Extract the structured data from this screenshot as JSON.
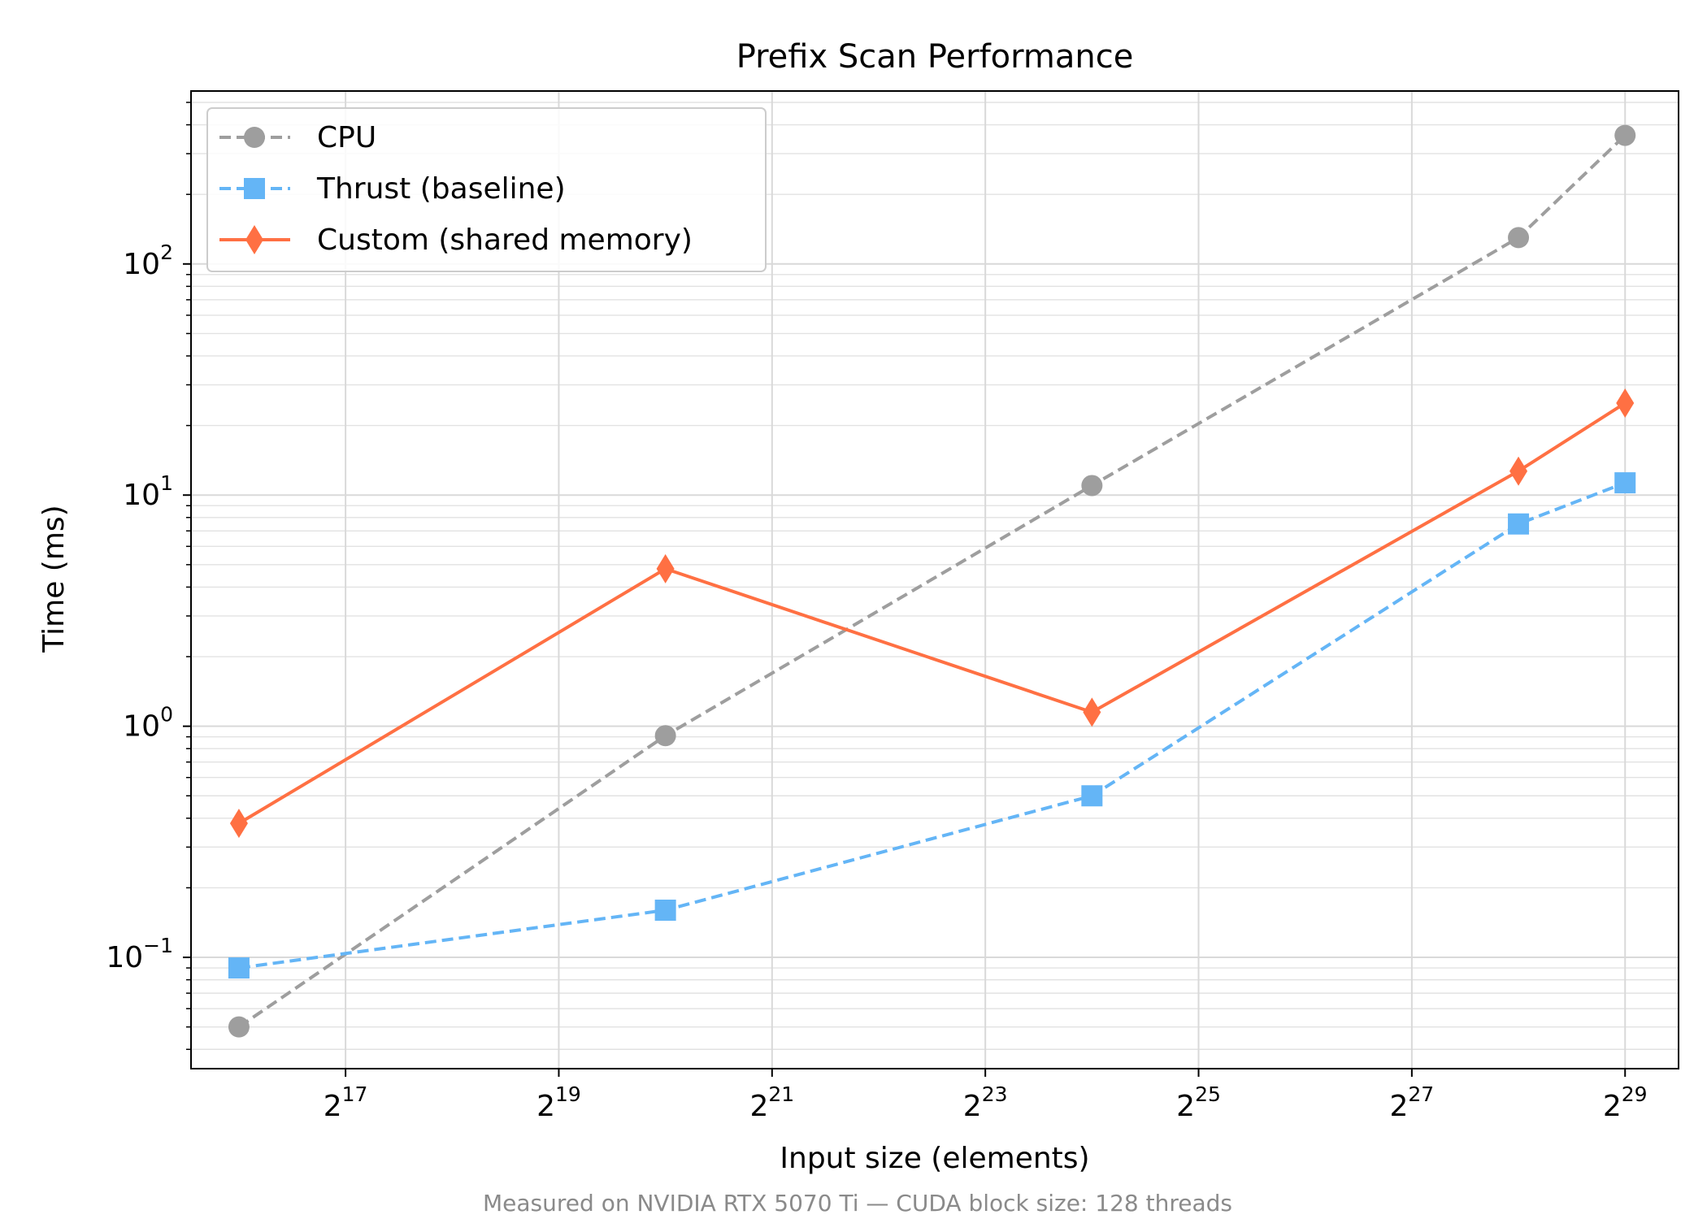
{
  "chart_data": {
    "type": "line",
    "title": "Prefix Scan Performance",
    "xlabel": "Input size (elements)",
    "ylabel": "Time (ms)",
    "caption": "Measured on NVIDIA RTX 5070 Ti — CUDA block size: 128 threads",
    "x_scale": "log2",
    "y_scale": "log10",
    "x": [
      65536,
      1048576,
      16777216,
      268435456,
      536870912
    ],
    "xlim": [
      48000,
      760000000
    ],
    "ylim": [
      0.033,
      560
    ],
    "x_ticks": [
      {
        "value": 131072,
        "base": "2",
        "exp": "17"
      },
      {
        "value": 524288,
        "base": "2",
        "exp": "19"
      },
      {
        "value": 2097152,
        "base": "2",
        "exp": "21"
      },
      {
        "value": 8388608,
        "base": "2",
        "exp": "23"
      },
      {
        "value": 33554432,
        "base": "2",
        "exp": "25"
      },
      {
        "value": 134217728,
        "base": "2",
        "exp": "27"
      },
      {
        "value": 536870912,
        "base": "2",
        "exp": "29"
      }
    ],
    "y_ticks": [
      {
        "value": 0.1,
        "base": "10",
        "exp": "−1"
      },
      {
        "value": 1,
        "base": "10",
        "exp": "0"
      },
      {
        "value": 10,
        "base": "10",
        "exp": "1"
      },
      {
        "value": 100,
        "base": "10",
        "exp": "2"
      }
    ],
    "grid": true,
    "legend_position": "top-left",
    "series": [
      {
        "name": "CPU",
        "values": [
          0.05,
          0.91,
          11,
          130,
          360
        ],
        "color": "#9e9e9e",
        "line_style": "dashed",
        "marker": "circle"
      },
      {
        "name": "Thrust (baseline)",
        "values": [
          0.09,
          0.16,
          0.5,
          7.5,
          11.3
        ],
        "color": "#64b5f6",
        "line_style": "dashed",
        "marker": "square"
      },
      {
        "name": "Custom (shared memory)",
        "values": [
          0.38,
          4.8,
          1.15,
          12.7,
          25
        ],
        "color": "#ff7043",
        "line_style": "solid",
        "marker": "diamond"
      }
    ]
  }
}
